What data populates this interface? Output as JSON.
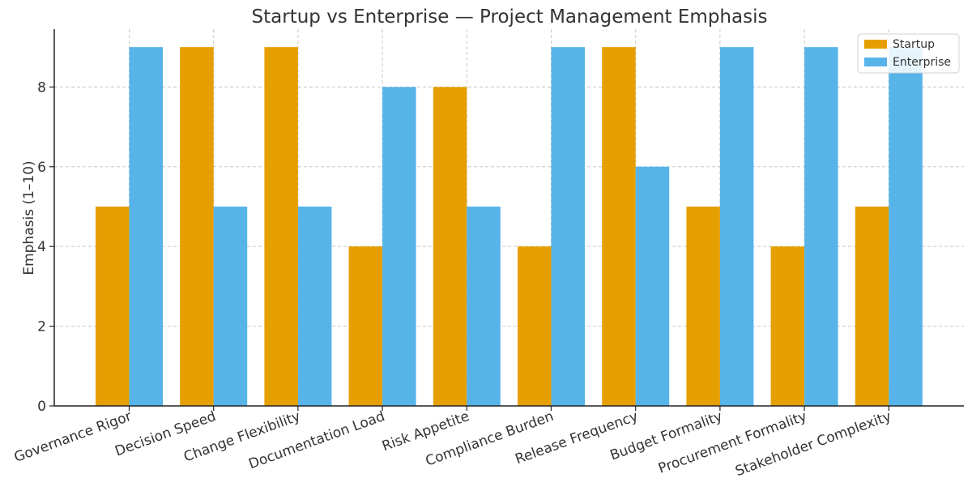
{
  "chart_data": {
    "type": "bar",
    "title": "Startup vs Enterprise — Project Management Emphasis",
    "xlabel": "",
    "ylabel": "Emphasis (1–10)",
    "categories": [
      "Governance Rigor",
      "Decision Speed",
      "Change Flexibility",
      "Documentation Load",
      "Risk Appetite",
      "Compliance Burden",
      "Release Frequency",
      "Budget Formality",
      "Procurement Formality",
      "Stakeholder Complexity"
    ],
    "series": [
      {
        "name": "Startup",
        "color": "#E69F00",
        "values": [
          5,
          9,
          9,
          4,
          8,
          4,
          9,
          5,
          4,
          5
        ]
      },
      {
        "name": "Enterprise",
        "color": "#56B4E9",
        "values": [
          9,
          5,
          5,
          8,
          5,
          9,
          6,
          9,
          9,
          9
        ]
      }
    ],
    "ylim": [
      0,
      9.45
    ],
    "yticks": [
      0,
      2,
      4,
      6,
      8
    ],
    "grid": true,
    "legend_position": "top-right"
  }
}
